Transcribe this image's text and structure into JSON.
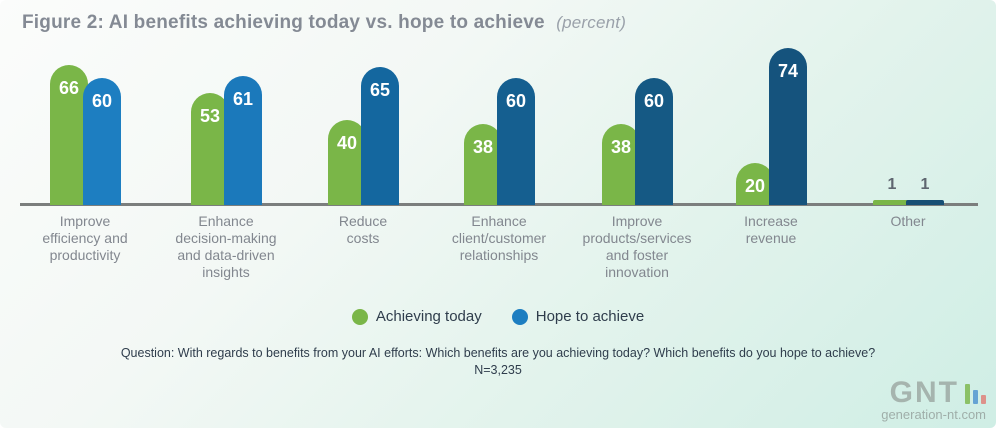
{
  "figure": {
    "title": "Figure 2: AI benefits achieving today vs. hope to achieve",
    "unit_note": "(percent)"
  },
  "chart_data": {
    "type": "bar",
    "title": "Figure 2: AI benefits achieving today vs. hope to achieve",
    "subtitle": "(percent)",
    "categories": [
      "Improve\nefficiency and\nproductivity",
      "Enhance\ndecision-making\nand data-driven\ninsights",
      "Reduce\ncosts",
      "Enhance\nclient/customer\nrelationships",
      "Improve\nproducts/services\nand foster\ninnovation",
      "Increase\nrevenue",
      "Other"
    ],
    "series": [
      {
        "name": "Achieving today",
        "color": "#7ab648",
        "values": [
          66,
          53,
          40,
          38,
          38,
          20,
          1
        ]
      },
      {
        "name": "Hope to achieve",
        "color": "#1d7ec1",
        "bar_colors": [
          "#1d7ec1",
          "#1b79bb",
          "#14679f",
          "#155f90",
          "#155984",
          "#15537d",
          "#174f74"
        ],
        "values": [
          60,
          61,
          65,
          60,
          60,
          74,
          1
        ]
      }
    ],
    "value_labels": true,
    "ylim": [
      0,
      80
    ],
    "grid": false,
    "legend_position": "bottom",
    "axis_line_color": "#7b7e7d",
    "label_inside_color": "#ffffff",
    "label_outside_color": "#5f6670",
    "category_label_color": "#82878f"
  },
  "legend": {
    "items": [
      {
        "label": "Achieving today",
        "color": "#7ab648"
      },
      {
        "label": "Hope to achieve",
        "color": "#1d7ec1"
      }
    ]
  },
  "footnote": {
    "line1": "Question: With regards to benefits from your AI efforts: Which benefits are you achieving today? Which benefits do you hope to achieve?",
    "line2": "N=3,235"
  },
  "watermark": {
    "name": "GNT",
    "domain": "generation-nt.com",
    "bar_colors": [
      "#7ab648",
      "#4a90d0",
      "#e07a74"
    ]
  }
}
